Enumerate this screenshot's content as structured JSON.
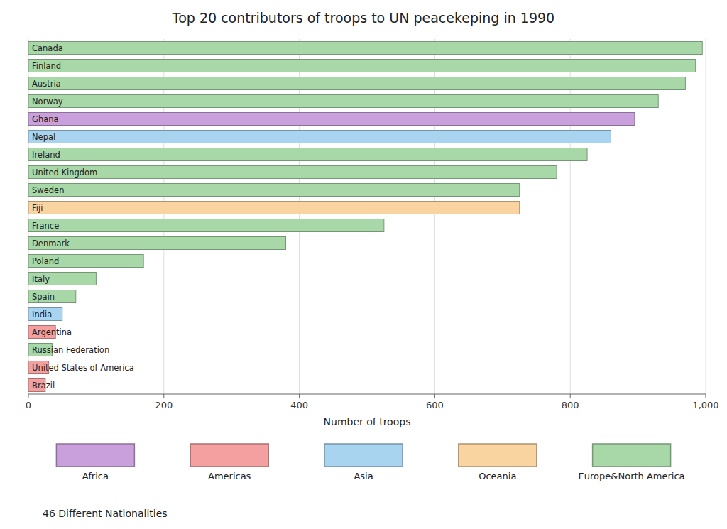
{
  "chart_data": {
    "type": "bar",
    "orientation": "horizontal",
    "title": "Top 20 contributors of troops to UN peacekeping in 1990",
    "x_label": "Number of troops",
    "categories": [
      "Canada",
      "Finland",
      "Austria",
      "Norway",
      "Ghana",
      "Nepal",
      "Ireland",
      "United Kingdom",
      "Sweden",
      "Fiji",
      "France",
      "Denmark",
      "Poland",
      "Italy",
      "Spain",
      "India",
      "Argentina",
      "Russian Federation",
      "United States of America",
      "Brazil"
    ],
    "series": [
      {
        "name": "Africa",
        "color": "#c9a0dc",
        "values": [
          null,
          null,
          null,
          null,
          895,
          null,
          null,
          null,
          null,
          null,
          null,
          null,
          null,
          null,
          null,
          null,
          null,
          null,
          null,
          null
        ]
      },
      {
        "name": "Americas",
        "color": "#f4a0a0",
        "values": [
          null,
          null,
          null,
          null,
          null,
          null,
          null,
          null,
          null,
          null,
          null,
          null,
          null,
          null,
          null,
          null,
          40,
          null,
          30,
          25
        ]
      },
      {
        "name": "Asia",
        "color": "#a8d4f0",
        "values": [
          null,
          null,
          null,
          null,
          null,
          860,
          null,
          null,
          null,
          null,
          null,
          null,
          null,
          null,
          null,
          50,
          null,
          null,
          null,
          null
        ]
      },
      {
        "name": "Oceania",
        "color": "#fad4a0",
        "values": [
          null,
          null,
          null,
          null,
          null,
          null,
          null,
          null,
          null,
          725,
          null,
          null,
          null,
          null,
          null,
          null,
          null,
          null,
          null,
          null
        ]
      },
      {
        "name": "Europe&North America",
        "color": "#a8d8a8",
        "values": [
          995,
          985,
          970,
          930,
          null,
          null,
          825,
          780,
          725,
          null,
          525,
          380,
          170,
          100,
          70,
          null,
          null,
          35,
          null,
          null
        ]
      }
    ],
    "xlim": [
      0,
      1000
    ],
    "xticks": [
      0,
      200,
      400,
      600,
      800,
      {
        "value": 1000,
        "label": "1,000"
      }
    ],
    "grid": true,
    "legend": "bottom",
    "annotation": "46 Different Nationalities"
  }
}
